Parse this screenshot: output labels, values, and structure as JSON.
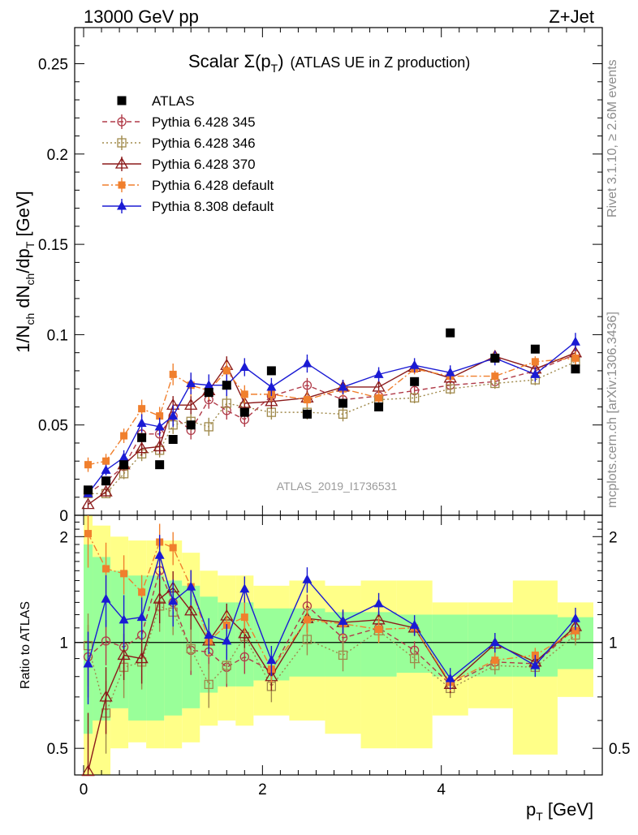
{
  "header": {
    "energy_label": "13000 GeV pp",
    "process_label": "Z+Jet"
  },
  "side_labels": {
    "rivet": "Rivet 3.1.10, ≥ 2.6M events",
    "mcplots": "mcplots.cern.ch [arXiv:1306.3436]"
  },
  "chart_data": [
    {
      "type": "scatter",
      "panel": "main",
      "title": "Scalar Σ(p_T) (ATLAS UE in Z production)",
      "title_main": "Scalar Σ(p",
      "title_sub": "T",
      "title_close": ")",
      "title_tail": "(ATLAS UE in Z production)",
      "ylabel": "1/N_ch dN_ch/dp_T [GeV]",
      "xlabel": "p_T [GeV]",
      "xlim": [
        -0.1,
        5.8
      ],
      "ylim": [
        0,
        0.27
      ],
      "yticks": [
        0,
        0.05,
        0.1,
        0.15,
        0.2,
        0.25
      ],
      "ytick_labels": [
        "0",
        "0.05",
        "0.1",
        "0.15",
        "0.2",
        "0.25"
      ],
      "analysis_label": "ATLAS_2019_I1736531",
      "legend_position": "top-left",
      "x": [
        0.05,
        0.25,
        0.45,
        0.65,
        0.85,
        1.0,
        1.2,
        1.4,
        1.6,
        1.8,
        2.1,
        2.5,
        2.9,
        3.3,
        3.7,
        4.1,
        4.6,
        5.05,
        5.5
      ],
      "series": [
        {
          "name": "ATLAS",
          "color": "#000000",
          "marker": "filled-square",
          "line": "none",
          "values": [
            0.014,
            0.019,
            0.028,
            0.043,
            0.028,
            0.042,
            0.05,
            0.068,
            0.072,
            0.057,
            0.08,
            0.056,
            0.062,
            0.06,
            0.074,
            0.101,
            0.087,
            0.092,
            0.081
          ],
          "errors": [
            0.001,
            0.001,
            0.001,
            0.001,
            0.001,
            0.001,
            0.001,
            0.001,
            0.001,
            0.001,
            0.001,
            0.001,
            0.001,
            0.001,
            0.001,
            0.001,
            0.001,
            0.001,
            0.001
          ]
        },
        {
          "name": "Pythia 6.428 345",
          "color": "#b03a48",
          "marker": "open-circle",
          "line": "dashed",
          "values": [
            0.012,
            0.019,
            0.027,
            0.045,
            0.045,
            0.055,
            0.047,
            0.064,
            0.058,
            0.053,
            0.066,
            0.072,
            0.064,
            0.066,
            0.069,
            0.072,
            0.074,
            0.08,
            0.089
          ],
          "errors": [
            0.002,
            0.002,
            0.003,
            0.004,
            0.004,
            0.005,
            0.005,
            0.005,
            0.005,
            0.004,
            0.004,
            0.004,
            0.004,
            0.003,
            0.003,
            0.003,
            0.003,
            0.003,
            0.004
          ]
        },
        {
          "name": "Pythia 6.428 346",
          "color": "#a08a4c",
          "marker": "open-square",
          "line": "dotted",
          "values": [
            0.012,
            0.012,
            0.023,
            0.034,
            0.036,
            0.05,
            0.052,
            0.049,
            0.062,
            0.06,
            0.057,
            0.057,
            0.056,
            0.064,
            0.065,
            0.07,
            0.073,
            0.075,
            0.085
          ],
          "errors": [
            0.002,
            0.002,
            0.003,
            0.004,
            0.004,
            0.005,
            0.005,
            0.005,
            0.005,
            0.004,
            0.004,
            0.004,
            0.004,
            0.003,
            0.003,
            0.003,
            0.003,
            0.003,
            0.004
          ]
        },
        {
          "name": "Pythia 6.428 370",
          "color": "#8b1a1a",
          "marker": "open-triangle",
          "line": "solid",
          "values": [
            0.006,
            0.013,
            0.028,
            0.037,
            0.038,
            0.061,
            0.061,
            0.069,
            0.083,
            0.062,
            0.063,
            0.065,
            0.071,
            0.071,
            0.082,
            0.076,
            0.088,
            0.081,
            0.09
          ],
          "errors": [
            0.002,
            0.002,
            0.003,
            0.004,
            0.004,
            0.005,
            0.005,
            0.005,
            0.005,
            0.004,
            0.004,
            0.004,
            0.004,
            0.003,
            0.003,
            0.003,
            0.003,
            0.003,
            0.004
          ]
        },
        {
          "name": "Pythia 6.428 default",
          "color": "#f07f2d",
          "marker": "filled-square-small",
          "line": "dashdot",
          "values": [
            0.028,
            0.03,
            0.044,
            0.059,
            0.055,
            0.078,
            0.072,
            0.069,
            0.08,
            0.067,
            0.067,
            0.064,
            0.07,
            0.065,
            0.081,
            0.077,
            0.077,
            0.085,
            0.087
          ],
          "errors": [
            0.004,
            0.004,
            0.004,
            0.005,
            0.005,
            0.006,
            0.006,
            0.005,
            0.005,
            0.005,
            0.004,
            0.004,
            0.004,
            0.004,
            0.003,
            0.003,
            0.003,
            0.003,
            0.004
          ]
        },
        {
          "name": "Pythia 8.308 default",
          "color": "#1a1ad4",
          "marker": "filled-triangle",
          "line": "solid",
          "values": [
            0.012,
            0.025,
            0.032,
            0.051,
            0.049,
            0.055,
            0.073,
            0.072,
            0.072,
            0.082,
            0.071,
            0.084,
            0.071,
            0.078,
            0.083,
            0.079,
            0.087,
            0.078,
            0.096
          ],
          "errors": [
            0.002,
            0.003,
            0.004,
            0.005,
            0.005,
            0.006,
            0.006,
            0.006,
            0.006,
            0.005,
            0.005,
            0.005,
            0.004,
            0.004,
            0.004,
            0.004,
            0.004,
            0.004,
            0.005
          ]
        }
      ]
    },
    {
      "type": "scatter",
      "panel": "ratio",
      "ylabel": "Ratio to ATLAS",
      "ylog": true,
      "ylim": [
        0.42,
        2.3
      ],
      "yticks": [
        0.5,
        1,
        2
      ],
      "ytick_labels": [
        "0.5",
        "1",
        "2"
      ],
      "xticks": [
        0,
        2,
        4
      ],
      "xtick_labels": [
        "0",
        "2",
        "4"
      ],
      "x_edges": [
        0.0,
        0.1,
        0.3,
        0.5,
        0.7,
        0.9,
        1.1,
        1.3,
        1.5,
        1.7,
        1.9,
        2.3,
        2.7,
        3.1,
        3.5,
        3.9,
        4.3,
        4.8,
        5.3,
        5.7
      ],
      "band_green": [
        [
          0.55,
          1.9
        ],
        [
          0.6,
          1.75
        ],
        [
          0.65,
          1.6
        ],
        [
          0.6,
          1.55
        ],
        [
          0.6,
          1.55
        ],
        [
          0.62,
          1.5
        ],
        [
          0.65,
          1.45
        ],
        [
          0.72,
          1.35
        ],
        [
          0.75,
          1.3
        ],
        [
          0.75,
          1.3
        ],
        [
          0.78,
          1.25
        ],
        [
          0.8,
          1.25
        ],
        [
          0.8,
          1.22
        ],
        [
          0.8,
          1.22
        ],
        [
          0.82,
          1.2
        ],
        [
          0.8,
          1.2
        ],
        [
          0.8,
          1.2
        ],
        [
          0.8,
          1.2
        ],
        [
          0.84,
          1.18
        ]
      ],
      "band_yellow": [
        [
          0.42,
          2.3
        ],
        [
          0.42,
          2.15
        ],
        [
          0.5,
          2.0
        ],
        [
          0.52,
          1.95
        ],
        [
          0.5,
          1.95
        ],
        [
          0.5,
          1.95
        ],
        [
          0.52,
          1.8
        ],
        [
          0.58,
          1.6
        ],
        [
          0.6,
          1.55
        ],
        [
          0.58,
          1.55
        ],
        [
          0.62,
          1.45
        ],
        [
          0.6,
          1.5
        ],
        [
          0.55,
          1.45
        ],
        [
          0.5,
          1.5
        ],
        [
          0.5,
          1.5
        ],
        [
          0.62,
          1.3
        ],
        [
          0.65,
          1.3
        ],
        [
          0.48,
          1.5
        ],
        [
          0.7,
          1.3
        ]
      ],
      "ratios": {
        "Pythia 6.428 345": [
          0.91,
          1.01,
          0.97,
          1.05,
          1.6,
          1.3,
          0.95,
          0.94,
          0.85,
          0.91,
          0.83,
          1.27,
          1.03,
          1.1,
          0.95,
          0.76,
          0.88,
          0.87,
          1.1
        ],
        "Pythia 6.428 346": [
          0.98,
          0.63,
          0.85,
          0.88,
          1.27,
          1.22,
          0.96,
          0.76,
          0.86,
          1.04,
          0.75,
          1.02,
          0.92,
          1.08,
          0.9,
          0.74,
          0.86,
          0.85,
          1.05
        ],
        "Pythia 6.428 370": [
          0.43,
          0.7,
          0.92,
          0.9,
          1.33,
          1.43,
          1.23,
          1.01,
          1.19,
          1.06,
          0.8,
          1.17,
          1.14,
          1.16,
          1.1,
          0.76,
          0.99,
          0.88,
          1.11
        ],
        "Pythia 6.428 default": [
          2.04,
          1.62,
          1.57,
          1.39,
          1.93,
          1.86,
          1.44,
          1.01,
          1.12,
          1.18,
          0.84,
          1.16,
          1.13,
          1.09,
          1.1,
          0.77,
          0.89,
          0.92,
          1.08
        ],
        "Pythia 8.308 default": [
          0.87,
          1.33,
          1.16,
          1.18,
          1.77,
          1.31,
          1.44,
          1.05,
          1.01,
          1.42,
          0.89,
          1.51,
          1.15,
          1.29,
          1.12,
          0.79,
          1.0,
          0.86,
          1.17
        ]
      }
    }
  ]
}
